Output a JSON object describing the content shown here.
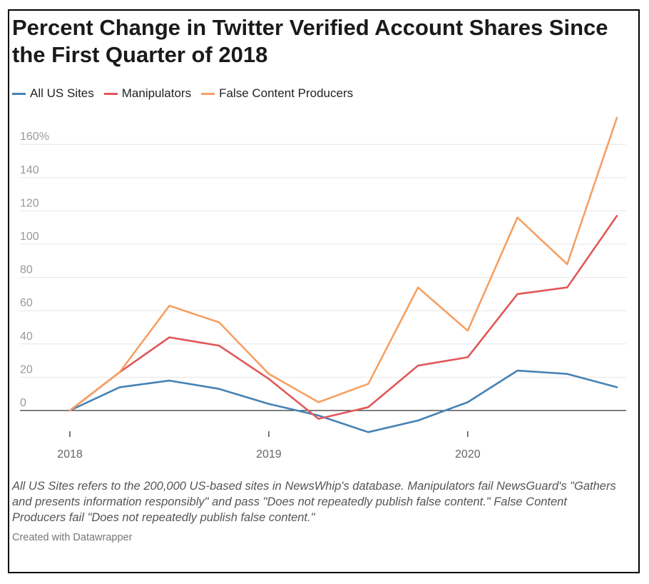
{
  "title": "Percent Change in Twitter Verified Account Shares Since the First Quarter of 2018",
  "notes": "All US Sites refers to the 200,000 US-based sites in NewsWhip's database. Manipulators fail NewsGuard's \"Gathers and presents information responsibly\" and pass \"Does not repeatedly publish false content.\" False Content Producers fail \"Does not repeatedly publish false content.\"",
  "credit": "Created with Datawrapper",
  "colors": {
    "all_us_sites": "#4682b4",
    "manipulators": "#e15759",
    "false_content": "#f5a064",
    "grid": "#e6e6e6",
    "axis": "#333333",
    "tick_text": "#999999"
  },
  "chart_data": {
    "type": "line",
    "title": "Percent Change in Twitter Verified Account Shares Since the First Quarter of 2018",
    "x": [
      "2018 Q1",
      "2018 Q2",
      "2018 Q3",
      "2018 Q4",
      "2019 Q1",
      "2019 Q2",
      "2019 Q3",
      "2019 Q4",
      "2020 Q1",
      "2020 Q2",
      "2020 Q3",
      "2020 Q4"
    ],
    "x_tick_labels": [
      {
        "index": 0,
        "label": "2018"
      },
      {
        "index": 4,
        "label": "2019"
      },
      {
        "index": 8,
        "label": "2020"
      }
    ],
    "y_ticks": [
      0,
      20,
      40,
      60,
      80,
      100,
      120,
      140,
      160
    ],
    "y_tick_labels": [
      "0",
      "20",
      "40",
      "60",
      "80",
      "100",
      "120",
      "140",
      "160%"
    ],
    "ylim": [
      -15,
      175
    ],
    "xlabel": "",
    "ylabel": "",
    "legend_position": "top-left",
    "series": [
      {
        "name": "All US Sites",
        "key": "all_us_sites",
        "values": [
          0,
          14,
          18,
          13,
          4,
          -3,
          -13,
          -6,
          5,
          24,
          22,
          14
        ]
      },
      {
        "name": "Manipulators",
        "key": "manipulators",
        "values": [
          0,
          23,
          44,
          39,
          19,
          -5,
          2,
          27,
          32,
          70,
          74,
          117
        ]
      },
      {
        "name": "False Content Producers",
        "key": "false_content",
        "values": [
          0,
          23,
          63,
          53,
          22,
          5,
          16,
          74,
          48,
          116,
          88,
          176
        ]
      }
    ]
  }
}
